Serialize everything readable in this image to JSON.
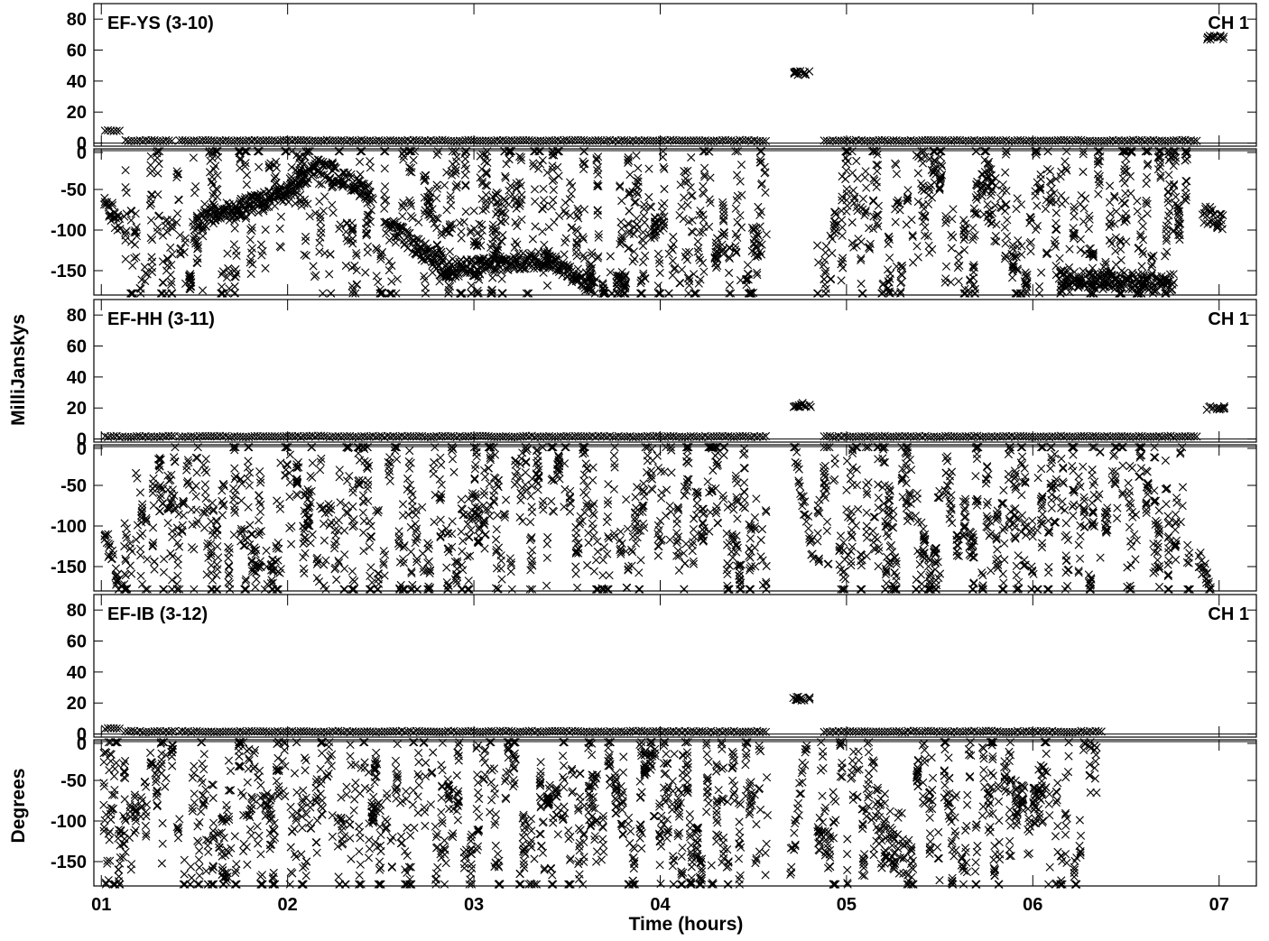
{
  "chart_data": {
    "type": "scatter",
    "marker": "x",
    "xlabel": "Time (hours)",
    "ylabel_amplitude": "MilliJanskys",
    "ylabel_phase": "Degrees",
    "x_ticks": [
      "01",
      "02",
      "03",
      "04",
      "05",
      "06",
      "07"
    ],
    "xlim": [
      0.96,
      7.2
    ],
    "amplitude_ylim": [
      -2,
      90
    ],
    "amplitude_ticks": [
      0,
      20,
      40,
      60,
      80
    ],
    "phase_ylim": [
      -180,
      0
    ],
    "phase_ticks": [
      0,
      -50,
      -100,
      -150
    ],
    "panels": [
      {
        "baseline": "EF-YS (3-10)",
        "channel": "CH 1",
        "amplitude": {
          "segments": [
            {
              "x0": 1.02,
              "x1": 1.1,
              "y": 7.5
            },
            {
              "x0": 1.13,
              "x1": 1.38,
              "y": 1
            },
            {
              "x0": 1.42,
              "x1": 4.58,
              "y": 1
            },
            {
              "x0": 4.88,
              "x1": 6.88,
              "y": 1
            }
          ],
          "clusters": [
            {
              "x": 4.76,
              "y": 45
            },
            {
              "x": 6.98,
              "y": 68
            }
          ]
        },
        "phase": {
          "scatter": [
            [
              1.13,
              4.58
            ],
            [
              4.85,
              6.85
            ]
          ],
          "density": 1.0,
          "trends": [
            {
              "x0": 1.02,
              "y0": -65,
              "x1": 1.1,
              "y1": -95
            },
            {
              "x0": 6.92,
              "y0": -80,
              "x1": 7.02,
              "y1": -92
            },
            {
              "x0": 1.5,
              "y0": -90,
              "x1": 2.0,
              "y1": -55
            },
            {
              "x0": 2.0,
              "y0": -55,
              "x1": 2.15,
              "y1": -20
            },
            {
              "x0": 2.15,
              "y0": -20,
              "x1": 2.45,
              "y1": -55
            },
            {
              "x0": 2.55,
              "y0": -95,
              "x1": 2.85,
              "y1": -150
            },
            {
              "x0": 2.85,
              "y0": -150,
              "x1": 3.4,
              "y1": -135
            },
            {
              "x0": 3.4,
              "y0": -135,
              "x1": 3.65,
              "y1": -170
            },
            {
              "x0": 6.15,
              "y0": -160,
              "x1": 6.75,
              "y1": -165
            }
          ]
        }
      },
      {
        "baseline": "EF-HH (3-11)",
        "channel": "CH 1",
        "amplitude": {
          "segments": [
            {
              "x0": 1.02,
              "x1": 1.4,
              "y": 1
            },
            {
              "x0": 1.42,
              "x1": 4.58,
              "y": 1
            },
            {
              "x0": 4.88,
              "x1": 6.88,
              "y": 1
            }
          ],
          "clusters": [
            {
              "x": 4.76,
              "y": 22
            },
            {
              "x": 6.98,
              "y": 20
            }
          ]
        },
        "phase": {
          "scatter": [
            [
              1.13,
              4.58
            ],
            [
              4.85,
              6.85
            ]
          ],
          "density": 1.0,
          "trends": [
            {
              "x0": 1.02,
              "y0": -110,
              "x1": 1.1,
              "y1": -180
            },
            {
              "x0": 4.72,
              "y0": -5,
              "x1": 4.82,
              "y1": -140
            },
            {
              "x0": 6.9,
              "y0": -140,
              "x1": 6.95,
              "y1": -180
            }
          ]
        }
      },
      {
        "baseline": "EF-IB (3-12)",
        "channel": "CH 1",
        "amplitude": {
          "segments": [
            {
              "x0": 1.02,
              "x1": 1.1,
              "y": 3
            },
            {
              "x0": 1.13,
              "x1": 1.4,
              "y": 1
            },
            {
              "x0": 1.42,
              "x1": 4.58,
              "y": 1
            },
            {
              "x0": 4.88,
              "x1": 6.38,
              "y": 1
            }
          ],
          "clusters": [
            {
              "x": 4.76,
              "y": 23
            }
          ]
        },
        "phase": {
          "scatter": [
            [
              1.02,
              4.58
            ],
            [
              4.85,
              6.35
            ]
          ],
          "density": 1.0,
          "trends": [
            {
              "x0": 1.08,
              "y0": -5,
              "x1": 1.03,
              "y1": -180
            },
            {
              "x0": 4.78,
              "y0": -5,
              "x1": 4.7,
              "y1": -160
            }
          ]
        }
      }
    ]
  }
}
